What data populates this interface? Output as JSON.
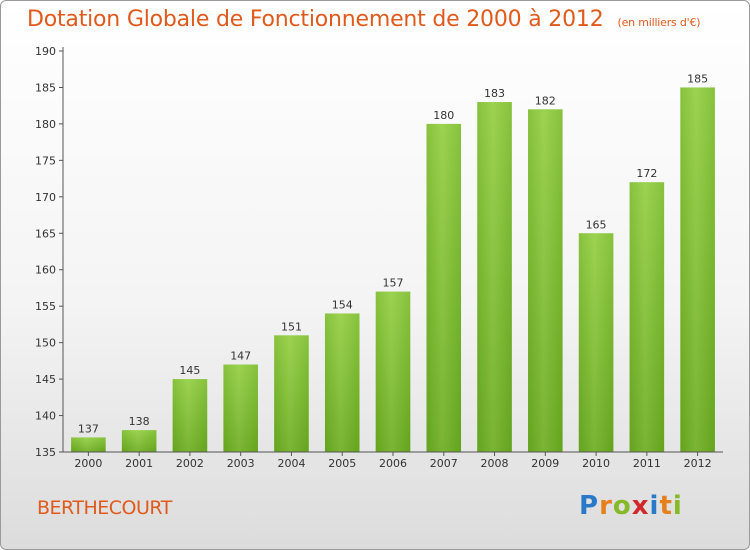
{
  "chart_data": {
    "type": "bar",
    "title": "Dotation Globale de Fonctionnement de 2000 à 2012",
    "subtitle": "(en milliers d'€)",
    "xlabel": "",
    "ylabel": "",
    "categories": [
      "2000",
      "2001",
      "2002",
      "2003",
      "2004",
      "2005",
      "2006",
      "2007",
      "2008",
      "2009",
      "2010",
      "2011",
      "2012"
    ],
    "values": [
      137,
      138,
      145,
      147,
      151,
      154,
      157,
      180,
      183,
      182,
      165,
      172,
      185
    ],
    "ylim": [
      135,
      190
    ],
    "yticks": [
      135,
      140,
      145,
      150,
      155,
      160,
      165,
      170,
      175,
      180,
      185,
      190
    ],
    "grid": false,
    "bar_color": "#7cbf2e",
    "bar_top_color": "#a8dc5c"
  },
  "footer": {
    "commune": "BERTHECOURT",
    "logo": {
      "letters": [
        "P",
        "r",
        "o",
        "x",
        "i",
        "t",
        "i"
      ],
      "colors": [
        "#2a79c8",
        "#e5801d",
        "#86b928",
        "#d1282c",
        "#2a79c8",
        "#e5801d",
        "#86b928"
      ]
    }
  }
}
